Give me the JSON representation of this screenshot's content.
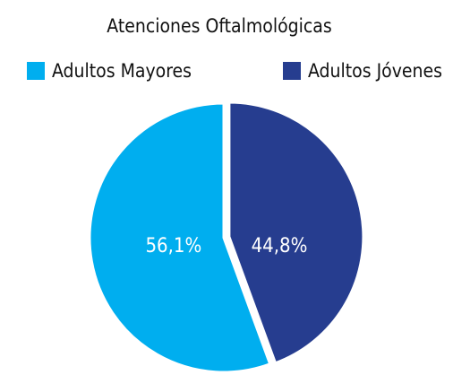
{
  "chart_data": {
    "type": "pie",
    "title": "Atenciones Oftalmológicas",
    "categories": [
      "Adultos Mayores",
      "Adultos Jóvenes"
    ],
    "values": [
      56.1,
      44.8
    ],
    "value_labels": [
      "56,1%",
      "44,8%"
    ],
    "colors": [
      "#00aeef",
      "#263d8f"
    ],
    "legend": "top"
  }
}
